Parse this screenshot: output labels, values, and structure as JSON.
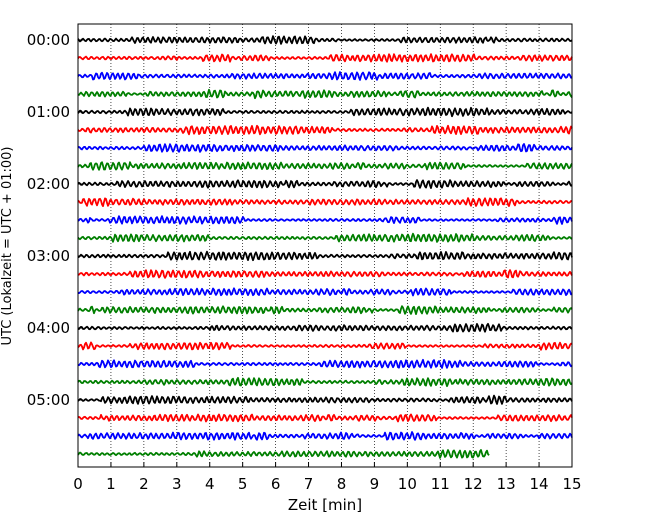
{
  "chart_data": {
    "type": "line",
    "title": "",
    "xlabel": "Zeit  [min]",
    "ylabel": "UTC (Lokalzeit = UTC + 01:00)",
    "xlim": [
      0,
      15
    ],
    "x_ticks": [
      "0",
      "1",
      "2",
      "3",
      "4",
      "5",
      "6",
      "7",
      "8",
      "9",
      "10",
      "11",
      "12",
      "13",
      "14",
      "15"
    ],
    "y_ticks": [
      "00:00",
      "01:00",
      "02:00",
      "03:00",
      "04:00",
      "05:00"
    ],
    "trace_interval_min": 15,
    "num_traces": 24,
    "last_trace_end_min": 12.5,
    "trace_colors": [
      "#000000",
      "#ff0000",
      "#0000ff",
      "#007f00"
    ],
    "grid": "vertical dotted"
  }
}
